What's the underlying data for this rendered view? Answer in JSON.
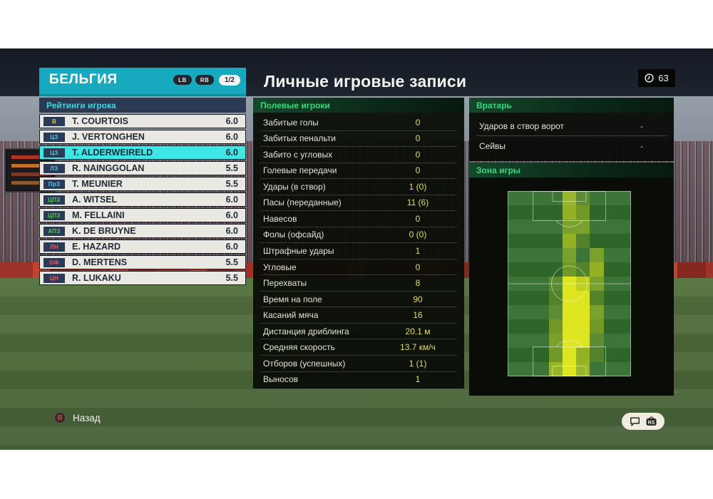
{
  "team_panel": {
    "team_name": "БЕЛЬГИЯ",
    "prev_button": "LB",
    "next_button": "RB",
    "page_indicator": "1/2",
    "ratings_title": "Рейтинги игрока",
    "players": [
      {
        "pos": "В",
        "pos_color": "#e3c93f",
        "name": "T. COURTOIS",
        "rating": "6.0",
        "selected": false
      },
      {
        "pos": "ЦЗ",
        "pos_color": "#5bc6e8",
        "name": "J. VERTONGHEN",
        "rating": "6.0",
        "selected": false
      },
      {
        "pos": "ЦЗ",
        "pos_color": "#5bc6e8",
        "name": "T. ALDERWEIRELD",
        "rating": "6.0",
        "selected": true
      },
      {
        "pos": "ЛЗ",
        "pos_color": "#5bc6e8",
        "name": "R. NAINGGOLAN",
        "rating": "5.5",
        "selected": false
      },
      {
        "pos": "ПрЗ",
        "pos_color": "#5bc6e8",
        "name": "T. MEUNIER",
        "rating": "5.5",
        "selected": false
      },
      {
        "pos": "ЦПЗ",
        "pos_color": "#59c659",
        "name": "A. WITSEL",
        "rating": "6.0",
        "selected": false
      },
      {
        "pos": "ЦПЗ",
        "pos_color": "#59c659",
        "name": "M. FELLAINI",
        "rating": "6.0",
        "selected": false
      },
      {
        "pos": "АПЗ",
        "pos_color": "#59c659",
        "name": "K. DE BRUYNE",
        "rating": "6.0",
        "selected": false
      },
      {
        "pos": "ЛН",
        "pos_color": "#e8596e",
        "name": "E. HAZARD",
        "rating": "6.0",
        "selected": false
      },
      {
        "pos": "ОФ",
        "pos_color": "#e8596e",
        "name": "D. MERTENS",
        "rating": "5.5",
        "selected": false
      },
      {
        "pos": "ЦН",
        "pos_color": "#e8596e",
        "name": "R. LUKAKU",
        "rating": "5.5",
        "selected": false
      }
    ]
  },
  "records": {
    "title": "Личные игровые записи",
    "time_badge": "63",
    "field_players_title": "Полевые игроки",
    "field_stats": [
      {
        "label": "Забитые голы",
        "value": "0"
      },
      {
        "label": "Забитых пенальти",
        "value": "0"
      },
      {
        "label": "Забито с угловых",
        "value": "0"
      },
      {
        "label": "Голевые передачи",
        "value": "0"
      },
      {
        "label": "Удары (в створ)",
        "value": "1 (0)"
      },
      {
        "label": "Пасы (переданные)",
        "value": "11 (6)"
      },
      {
        "label": "Навесов",
        "value": "0"
      },
      {
        "label": "Фолы (офсайд)",
        "value": "0 (0)"
      },
      {
        "label": "Штрафные удары",
        "value": "1"
      },
      {
        "label": "Угловые",
        "value": "0"
      },
      {
        "label": "Перехваты",
        "value": "8"
      },
      {
        "label": "Время на поле",
        "value": "90"
      },
      {
        "label": "Касаний мяча",
        "value": "16"
      },
      {
        "label": "Дистанция дриблинга",
        "value": "20.1 м"
      },
      {
        "label": "Средняя скорость",
        "value": "13.7 км/ч"
      },
      {
        "label": "Отборов (успешных)",
        "value": "1 (1)"
      },
      {
        "label": "Выносов",
        "value": "1"
      }
    ],
    "goalkeeper_title": "Вратарь",
    "gk_stats": [
      {
        "label": "Ударов в створ ворот",
        "value": "-"
      },
      {
        "label": "Сейвы",
        "value": "-"
      }
    ],
    "zone_title": "Зона игры"
  },
  "chart_data": {
    "type": "heatmap",
    "title": "Зона игры",
    "description": "Player activity zones on vertical football pitch, 0=no activity to 5=highest activity, attacking goal at top",
    "cols": 9,
    "rows": 13,
    "intensity_scale": [
      0,
      5
    ],
    "grid": [
      [
        0,
        0,
        0,
        0,
        3,
        1,
        0,
        0,
        0
      ],
      [
        0,
        0,
        0,
        0,
        3,
        2,
        0,
        0,
        0
      ],
      [
        0,
        0,
        0,
        0,
        2,
        2,
        0,
        0,
        0
      ],
      [
        0,
        0,
        0,
        0,
        3,
        1,
        0,
        0,
        0
      ],
      [
        0,
        0,
        0,
        0,
        2,
        0,
        2,
        0,
        0
      ],
      [
        0,
        0,
        0,
        0,
        2,
        1,
        3,
        0,
        0
      ],
      [
        0,
        0,
        0,
        1,
        5,
        4,
        2,
        0,
        0
      ],
      [
        0,
        0,
        0,
        1,
        5,
        5,
        1,
        0,
        0
      ],
      [
        0,
        0,
        0,
        1,
        5,
        5,
        2,
        0,
        0
      ],
      [
        0,
        0,
        0,
        2,
        5,
        5,
        2,
        0,
        0
      ],
      [
        0,
        0,
        0,
        2,
        5,
        5,
        1,
        0,
        0
      ],
      [
        0,
        0,
        0,
        2,
        5,
        3,
        1,
        0,
        0
      ],
      [
        0,
        0,
        0,
        3,
        5,
        3,
        0,
        0,
        0
      ]
    ],
    "palette": {
      "0": "transparent",
      "1": "rgba(180,205,45,0.28)",
      "2": "rgba(196,214,38,0.46)",
      "3": "rgba(210,222,32,0.62)",
      "4": "rgba(222,230,28,0.80)",
      "5": "rgba(230,236,32,0.95)"
    }
  },
  "footer": {
    "back_button": "B",
    "back_label": "Назад",
    "rs_icon_label": "RS"
  },
  "colors": {
    "accent_teal": "#17a9bd",
    "selected_row": "#3ee6e6",
    "header_navy": "#2b3a52",
    "section_green_text": "#36da7e",
    "stat_value_yellow": "#e5de66",
    "panel_dark": "#0a0d07"
  }
}
